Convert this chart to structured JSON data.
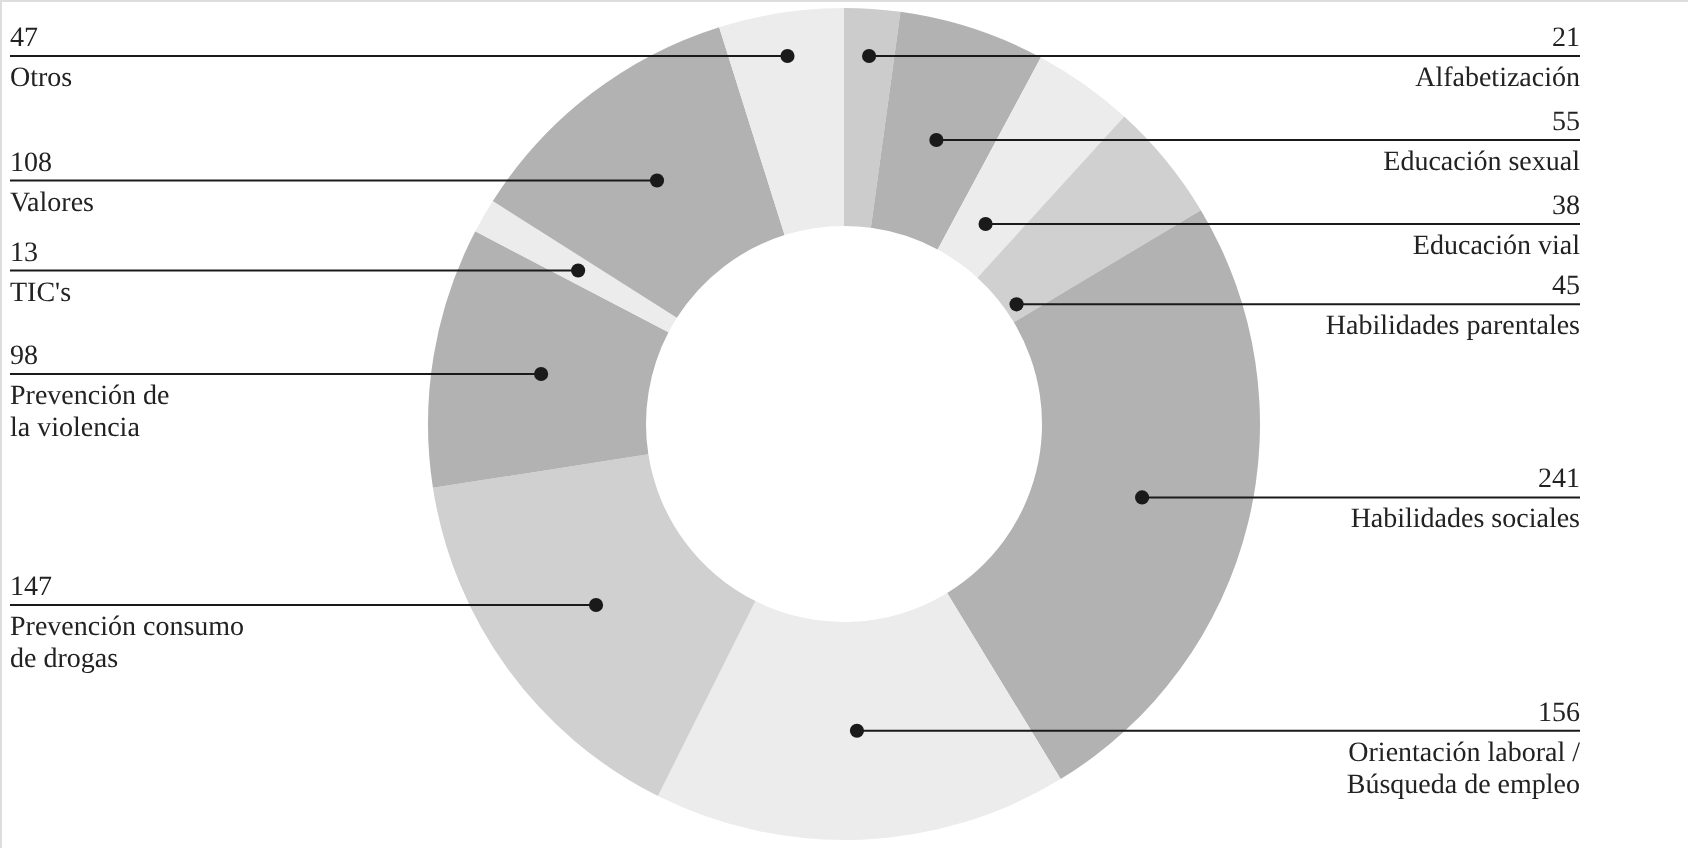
{
  "chart_data": {
    "type": "donut",
    "categories": [
      "Alfabetización",
      "Educación sexual",
      "Educación vial",
      "Habilidades parentales",
      "Habilidades sociales",
      "Orientación laboral /\nBúsqueda de empleo",
      "Prevención consumo\nde drogas",
      "Prevención de\nla violencia",
      "TIC's",
      "Valores",
      "Otros"
    ],
    "values": [
      21,
      55,
      38,
      45,
      241,
      156,
      147,
      98,
      13,
      108,
      47
    ],
    "colors": [
      "#cccccc",
      "#b2b2b2",
      "#ececec",
      "#d0d0d0",
      "#b2b2b2",
      "#ececec",
      "#d0d0d0",
      "#b2b2b2",
      "#ececec",
      "#b2b2b2",
      "#ececec"
    ],
    "data_labels": true
  }
}
